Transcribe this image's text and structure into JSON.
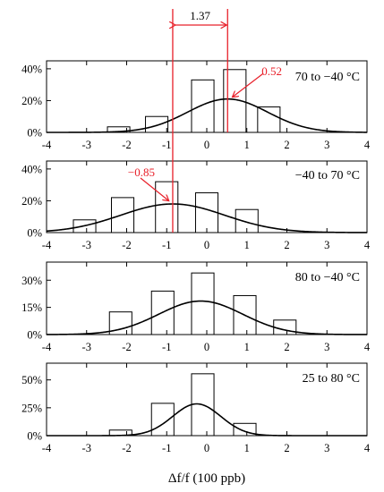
{
  "colors": {
    "axis": "#000000",
    "bar_fill": "#ffffff",
    "bar_edge": "#000000",
    "fit_curve": "#000000",
    "annotation": "#e8202a"
  },
  "figure": {
    "xlabel": "Δf/f (100 ppb)"
  },
  "chart_data": [
    {
      "type": "bar",
      "panel_label": "70 to −40 °C",
      "xlim": [
        -4,
        4
      ],
      "ylim": [
        0,
        45
      ],
      "x_ticks": [
        -4,
        -3,
        -2,
        -1,
        0,
        1,
        2,
        3,
        4
      ],
      "x_tick_labels": [
        "-4",
        "-3",
        "-2",
        "-1",
        "0",
        "1",
        "2",
        "3",
        "4"
      ],
      "y_ticks": [
        0,
        20,
        40
      ],
      "y_tick_labels": [
        "0%",
        "20%",
        "40%"
      ],
      "bin_width": 0.56,
      "bins": {
        "centers": [
          -2.2,
          -1.25,
          -0.1,
          0.7,
          1.55
        ],
        "values": [
          3.5,
          10,
          33,
          39.5,
          16
        ]
      },
      "fit": {
        "mean": 0.52,
        "sigma": 1.0,
        "peak": 21
      },
      "annotations": [
        {
          "label": "0.52",
          "x": 0.52
        }
      ]
    },
    {
      "type": "bar",
      "panel_label": "−40 to 70 °C",
      "xlim": [
        -4,
        4
      ],
      "ylim": [
        0,
        45
      ],
      "x_ticks": [
        -4,
        -3,
        -2,
        -1,
        0,
        1,
        2,
        3,
        4
      ],
      "x_tick_labels": [
        "-4",
        "-3",
        "-2",
        "-1",
        "0",
        "1",
        "2",
        "3",
        "4"
      ],
      "y_ticks": [
        0,
        20,
        40
      ],
      "y_tick_labels": [
        "0%",
        "20%",
        "40%"
      ],
      "bin_width": 0.56,
      "bins": {
        "centers": [
          -3.05,
          -2.1,
          -1.0,
          0.0,
          1.0
        ],
        "values": [
          8,
          22,
          32,
          25,
          14.5
        ]
      },
      "fit": {
        "mean": -0.85,
        "sigma": 1.3,
        "peak": 18
      },
      "annotations": [
        {
          "label": "−0.85",
          "x": -0.85
        }
      ]
    },
    {
      "type": "bar",
      "panel_label": "80 to −40 °C",
      "xlim": [
        -4,
        4
      ],
      "ylim": [
        0,
        40
      ],
      "x_ticks": [
        -4,
        -3,
        -2,
        -1,
        0,
        1,
        2,
        3,
        4
      ],
      "x_tick_labels": [
        "-4",
        "-3",
        "-2",
        "-1",
        "0",
        "1",
        "2",
        "3",
        "4"
      ],
      "y_ticks": [
        0,
        15,
        30
      ],
      "y_tick_labels": [
        "0%",
        "15%",
        "30%"
      ],
      "bin_width": 0.56,
      "bins": {
        "centers": [
          -2.15,
          -1.1,
          -0.1,
          0.95,
          1.95
        ],
        "values": [
          12.5,
          24,
          34,
          21.5,
          8
        ]
      },
      "fit": {
        "mean": -0.15,
        "sigma": 1.05,
        "peak": 18.5
      },
      "annotations": []
    },
    {
      "type": "bar",
      "panel_label": "25 to 80 °C",
      "xlim": [
        -4,
        4
      ],
      "ylim": [
        0,
        65
      ],
      "x_ticks": [
        -4,
        -3,
        -2,
        -1,
        0,
        1,
        2,
        3,
        4
      ],
      "x_tick_labels": [
        "-4",
        "-3",
        "-2",
        "-1",
        "0",
        "1",
        "2",
        "3",
        "4"
      ],
      "y_ticks": [
        0,
        25,
        50
      ],
      "y_tick_labels": [
        "0%",
        "25%",
        "50%"
      ],
      "bin_width": 0.56,
      "bins": {
        "centers": [
          -2.15,
          -1.1,
          -0.1,
          0.95
        ],
        "values": [
          5,
          29,
          55.5,
          11
        ]
      },
      "fit": {
        "mean": -0.25,
        "sigma": 0.6,
        "peak": 28.5
      },
      "annotations": []
    }
  ],
  "difference_marker": {
    "label": "1.37",
    "from": -0.85,
    "to": 0.52
  }
}
